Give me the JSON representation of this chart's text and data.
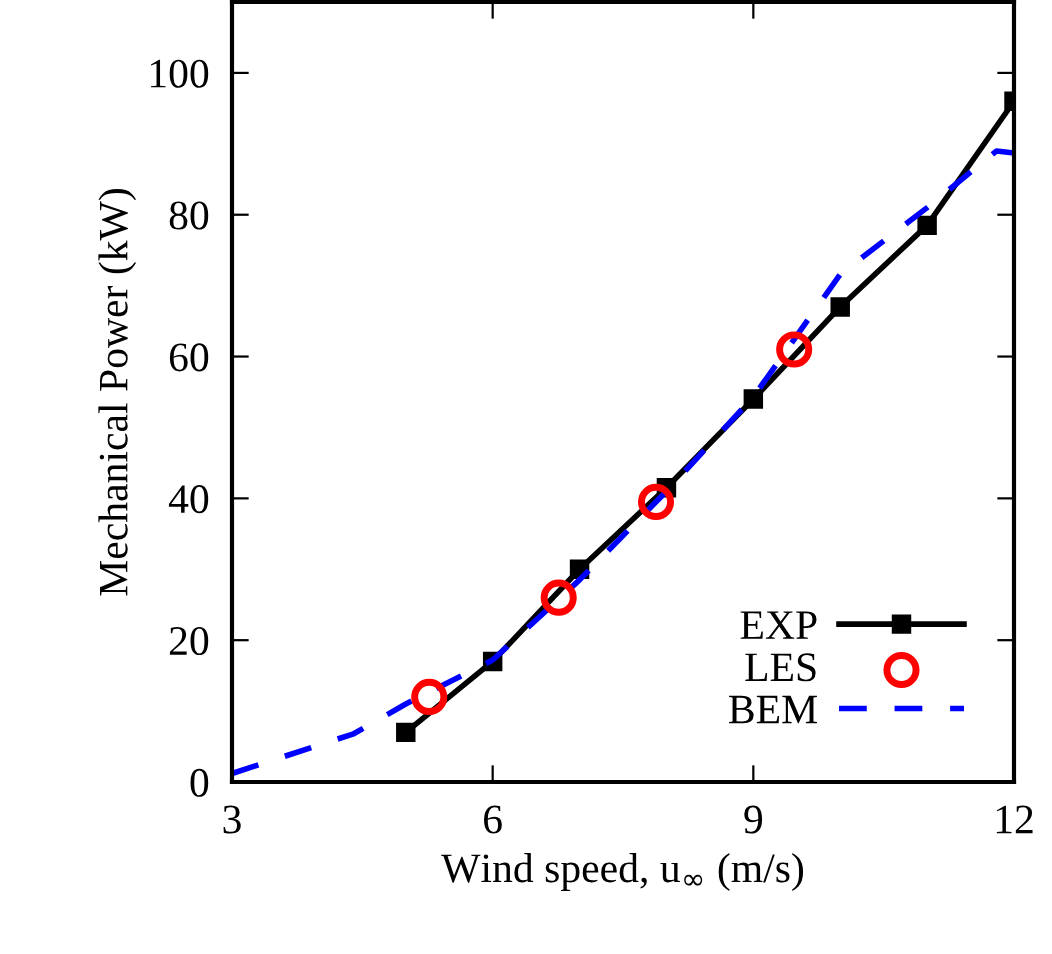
{
  "chart_data": {
    "type": "line",
    "xlabel": "Wind speed, u$_{∞}$ (m/s)",
    "ylabel": "Mechanical Power (kW)",
    "xlim": [
      3,
      12
    ],
    "ylim": [
      0,
      110
    ],
    "xticks": [
      3,
      6,
      9,
      12
    ],
    "yticks": [
      0,
      20,
      40,
      60,
      80,
      100
    ],
    "grid": false,
    "legend": "bottom right",
    "series": [
      {
        "name": "EXP",
        "color": "#000000",
        "marker": "square",
        "line_style": "solid",
        "x": [
          5,
          6,
          7,
          8,
          9,
          10,
          11,
          12
        ],
        "values": [
          7,
          17,
          30,
          41.5,
          54,
          67,
          78.5,
          96
        ]
      },
      {
        "name": "LES",
        "type": "scatter",
        "color": "#ff0000",
        "marker": "circle",
        "x": [
          5.27,
          6.76,
          7.88,
          9.47
        ],
        "values": [
          12,
          26,
          39.5,
          61
        ]
      },
      {
        "name": "BEM",
        "color": "#0000ff",
        "marker": "none",
        "line_style": "dashed",
        "x": [
          3,
          4.4,
          5,
          6,
          7,
          8,
          9,
          10,
          11,
          11.6,
          11.8,
          12
        ],
        "values": [
          1.2,
          6.8,
          11,
          17.2,
          28.5,
          41,
          54.3,
          71.6,
          81,
          87,
          89,
          88.7
        ]
      }
    ]
  }
}
